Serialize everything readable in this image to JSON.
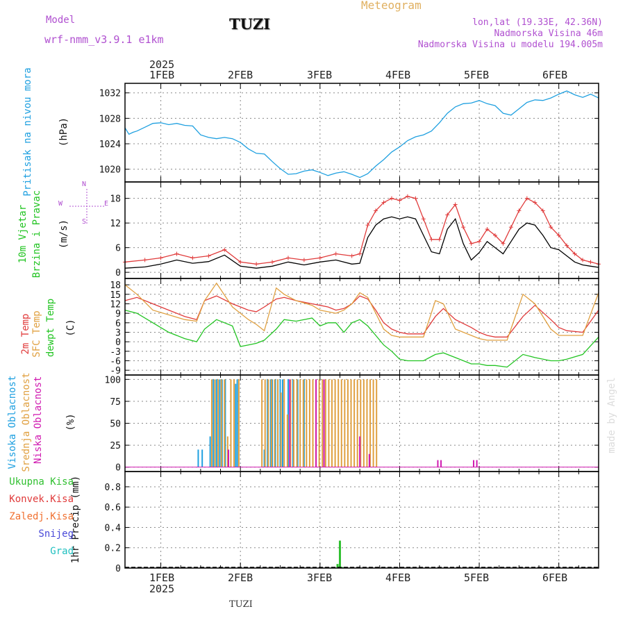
{
  "header": {
    "model_label": "Model",
    "model_name": "wrf-nmm_v3.9.1  e1km",
    "station": "TUZI",
    "chart_title": "Meteogram",
    "location": "lon,lat (19.33E, 42.36N)",
    "elevation": "Nadmorska Visina 46m",
    "model_elevation": "Nadmorska Visina u modelu 194.005m"
  },
  "footer": {
    "station": "TUZI",
    "watermark": "made by Angel"
  },
  "colors": {
    "pressure": "#1fa0e0",
    "temp2m": "#e03a3a",
    "sfc_temp": "#e0a040",
    "dewpoint": "#22c422",
    "high_cloud": "#1fa0e0",
    "mid_cloud": "#e0a040",
    "low_cloud": "#d01ab0",
    "total_precip": "#30c030",
    "conv_precip": "#e03a3a",
    "freezing_precip": "#f07030",
    "snow": "#4848d8",
    "hail": "#20c0c0",
    "wind_speed": "#000000",
    "wind_gust": "#e03a3a",
    "model_label": "#b050d0",
    "title": "#e0b060"
  },
  "time_axis": {
    "year": "2025",
    "days": [
      "1FEB",
      "2FEB",
      "3FEB",
      "4FEB",
      "5FEB",
      "6FEB"
    ],
    "x_range_days": [
      0.55,
      6.5
    ]
  },
  "chart_data": [
    {
      "type": "line",
      "name": "pressure",
      "ylabel_lines": [
        "Pritisak na nivou mora",
        "(hPa)"
      ],
      "yticks": [
        "1020",
        "1024",
        "1028",
        "1032"
      ],
      "ylim": [
        1018,
        1033.5
      ],
      "series": [
        {
          "name": "Pritisak na nivou mora",
          "color": "#1fa0e0",
          "x": [
            0.55,
            0.6,
            0.65,
            0.7,
            0.8,
            0.9,
            1.0,
            1.1,
            1.2,
            1.3,
            1.4,
            1.5,
            1.6,
            1.7,
            1.8,
            1.9,
            2.0,
            2.1,
            2.2,
            2.3,
            2.4,
            2.5,
            2.6,
            2.7,
            2.8,
            2.9,
            3.0,
            3.1,
            3.2,
            3.3,
            3.4,
            3.5,
            3.6,
            3.7,
            3.8,
            3.9,
            4.0,
            4.1,
            4.2,
            4.3,
            4.4,
            4.5,
            4.6,
            4.7,
            4.8,
            4.9,
            5.0,
            5.1,
            5.2,
            5.3,
            5.4,
            5.5,
            5.6,
            5.7,
            5.8,
            5.9,
            6.0,
            6.1,
            6.2,
            6.3,
            6.4,
            6.5
          ],
          "values": [
            1026.5,
            1025.5,
            1025.8,
            1026.0,
            1026.6,
            1027.2,
            1027.3,
            1027.0,
            1027.2,
            1026.9,
            1026.8,
            1025.4,
            1025.0,
            1024.8,
            1025.0,
            1024.8,
            1024.2,
            1023.2,
            1022.5,
            1022.4,
            1021.2,
            1020.1,
            1019.2,
            1019.3,
            1019.7,
            1019.9,
            1019.5,
            1019.0,
            1019.4,
            1019.6,
            1019.2,
            1018.7,
            1019.3,
            1020.5,
            1021.5,
            1022.7,
            1023.5,
            1024.5,
            1025.1,
            1025.4,
            1026.0,
            1027.3,
            1028.8,
            1029.8,
            1030.3,
            1030.4,
            1030.8,
            1030.3,
            1030.0,
            1028.8,
            1028.5,
            1029.5,
            1030.5,
            1030.9,
            1030.8,
            1031.2,
            1031.8,
            1032.3,
            1031.7,
            1031.3,
            1031.8,
            1031.2
          ]
        }
      ]
    },
    {
      "type": "line",
      "name": "wind",
      "ylabel_lines": [
        "10m Vjetar",
        "Brzina i Pravac",
        "(m/s)"
      ],
      "compass": {
        "n": "N",
        "s": "S",
        "w": "W",
        "e": "E"
      },
      "yticks": [
        "0",
        "6",
        "12",
        "18"
      ],
      "ylim": [
        -1.5,
        22
      ],
      "series": [
        {
          "name": "wind speed",
          "color": "#000000",
          "x": [
            0.55,
            0.8,
            1.0,
            1.2,
            1.4,
            1.6,
            1.8,
            2.0,
            2.2,
            2.4,
            2.6,
            2.8,
            3.0,
            3.2,
            3.4,
            3.5,
            3.6,
            3.7,
            3.8,
            3.9,
            4.0,
            4.1,
            4.2,
            4.3,
            4.4,
            4.5,
            4.6,
            4.7,
            4.8,
            4.9,
            5.0,
            5.1,
            5.2,
            5.3,
            5.4,
            5.5,
            5.6,
            5.7,
            5.8,
            5.9,
            6.0,
            6.1,
            6.2,
            6.3,
            6.4,
            6.5
          ],
          "values": [
            1.0,
            1.3,
            2.0,
            3.0,
            2.2,
            2.6,
            4.2,
            1.5,
            1.0,
            1.5,
            2.5,
            1.8,
            2.5,
            3.0,
            2.0,
            2.2,
            8.5,
            11.5,
            13.0,
            13.5,
            13.0,
            13.5,
            13.0,
            9.0,
            5.0,
            4.5,
            10.5,
            13.0,
            7.0,
            3.0,
            4.8,
            7.5,
            6.0,
            4.5,
            7.5,
            10.5,
            12.0,
            11.5,
            9.0,
            6.0,
            5.5,
            4.0,
            2.5,
            1.8,
            1.5,
            1.2
          ]
        },
        {
          "name": "wind gust",
          "color": "#e03a3a",
          "x": [
            0.55,
            0.8,
            1.0,
            1.2,
            1.4,
            1.6,
            1.8,
            2.0,
            2.2,
            2.4,
            2.6,
            2.8,
            3.0,
            3.2,
            3.4,
            3.5,
            3.6,
            3.7,
            3.8,
            3.9,
            4.0,
            4.1,
            4.2,
            4.3,
            4.4,
            4.5,
            4.6,
            4.7,
            4.8,
            4.9,
            5.0,
            5.1,
            5.2,
            5.3,
            5.4,
            5.5,
            5.6,
            5.7,
            5.8,
            5.9,
            6.0,
            6.1,
            6.2,
            6.3,
            6.4,
            6.5
          ],
          "values": [
            2.5,
            3.0,
            3.5,
            4.5,
            3.5,
            4.0,
            5.5,
            2.5,
            2.0,
            2.5,
            3.5,
            3.0,
            3.5,
            4.5,
            4.0,
            4.5,
            11.5,
            15.0,
            17.0,
            18.0,
            17.5,
            18.5,
            18.0,
            13.0,
            8.0,
            8.0,
            14.0,
            16.5,
            11.0,
            7.0,
            7.5,
            10.5,
            9.0,
            7.0,
            11.0,
            15.0,
            18.0,
            17.0,
            15.0,
            11.0,
            9.0,
            6.5,
            4.5,
            3.0,
            2.5,
            2.0
          ]
        }
      ]
    },
    {
      "type": "line",
      "name": "temperature",
      "ylabel_lines": [
        "2m Temp",
        "SFC Temp",
        "dewpt Temp",
        "(C)"
      ],
      "yticks": [
        "-9",
        "-6",
        "-3",
        "0",
        "3",
        "6",
        "9",
        "12",
        "15",
        "18"
      ],
      "ylim": [
        -10.5,
        20
      ],
      "series": [
        {
          "name": "2m Temp",
          "color": "#e03a3a",
          "x": [
            0.55,
            0.7,
            0.9,
            1.1,
            1.3,
            1.45,
            1.55,
            1.7,
            1.9,
            2.0,
            2.1,
            2.2,
            2.3,
            2.45,
            2.55,
            2.7,
            2.9,
            3.0,
            3.1,
            3.2,
            3.3,
            3.4,
            3.5,
            3.6,
            3.7,
            3.8,
            3.9,
            4.0,
            4.1,
            4.2,
            4.3,
            4.45,
            4.55,
            4.7,
            4.9,
            5.0,
            5.1,
            5.2,
            5.35,
            5.55,
            5.7,
            5.9,
            6.0,
            6.1,
            6.3,
            6.5
          ],
          "values": [
            13,
            14,
            12,
            10,
            8,
            7,
            13,
            14.5,
            12,
            11,
            10,
            9.5,
            11,
            13.5,
            14,
            13,
            12,
            11.5,
            11,
            10,
            10.5,
            12,
            14.5,
            13.5,
            10,
            6,
            4,
            3,
            2.5,
            2.5,
            2.5,
            8,
            10.5,
            7,
            4.5,
            3,
            2,
            1.5,
            1.5,
            8,
            11.5,
            7,
            4.5,
            3.5,
            3,
            10
          ]
        },
        {
          "name": "SFC Temp",
          "color": "#e0a040",
          "x": [
            0.55,
            0.7,
            0.9,
            1.1,
            1.3,
            1.45,
            1.55,
            1.7,
            1.9,
            2.0,
            2.1,
            2.2,
            2.3,
            2.45,
            2.55,
            2.7,
            2.9,
            3.0,
            3.1,
            3.2,
            3.3,
            3.4,
            3.5,
            3.6,
            3.7,
            3.8,
            3.9,
            4.0,
            4.1,
            4.2,
            4.3,
            4.45,
            4.55,
            4.7,
            4.9,
            5.0,
            5.1,
            5.2,
            5.35,
            5.55,
            5.7,
            5.9,
            6.0,
            6.1,
            6.3,
            6.5
          ],
          "values": [
            18,
            15,
            10,
            8.5,
            7,
            6.5,
            13,
            18.5,
            11,
            9,
            7,
            5.5,
            3.5,
            17,
            15,
            13,
            11.5,
            10,
            9.5,
            9,
            10,
            12,
            15.5,
            14,
            9,
            4,
            2,
            1.5,
            1.5,
            1.5,
            1.5,
            13,
            12,
            4,
            2,
            1,
            0.5,
            0.5,
            0.5,
            15,
            12,
            4,
            2,
            2,
            2,
            15.5
          ]
        },
        {
          "name": "dewpt Temp",
          "color": "#22c422",
          "x": [
            0.55,
            0.7,
            0.9,
            1.1,
            1.3,
            1.45,
            1.55,
            1.7,
            1.9,
            2.0,
            2.1,
            2.2,
            2.3,
            2.45,
            2.55,
            2.7,
            2.9,
            3.0,
            3.1,
            3.2,
            3.3,
            3.4,
            3.5,
            3.6,
            3.7,
            3.8,
            3.9,
            4.0,
            4.1,
            4.2,
            4.3,
            4.45,
            4.55,
            4.7,
            4.9,
            5.0,
            5.1,
            5.2,
            5.35,
            5.55,
            5.7,
            5.9,
            6.0,
            6.1,
            6.3,
            6.5
          ],
          "values": [
            10,
            9,
            6,
            3,
            1,
            0,
            4,
            7,
            5,
            -1.5,
            -1,
            -0.5,
            0.5,
            4,
            7,
            6.5,
            7.5,
            5,
            6,
            6,
            3,
            6,
            7,
            5,
            2,
            -1,
            -3,
            -5.5,
            -6,
            -6,
            -6,
            -4,
            -3.5,
            -5,
            -7,
            -7,
            -7.5,
            -7.5,
            -8,
            -4,
            -5,
            -6,
            -6,
            -5.5,
            -4,
            1.5
          ]
        }
      ]
    },
    {
      "type": "bar",
      "name": "cloud cover",
      "ylabel_lines": [
        "Visoka Oblacnost",
        "Srednja Oblacnost",
        "Niska Oblacnost",
        "(%)"
      ],
      "yticks": [
        "0",
        "25",
        "50",
        "75",
        "100"
      ],
      "ylim": [
        -5,
        105
      ],
      "series": [
        {
          "name": "Visoka Oblacnost",
          "color": "#1fa0e0",
          "x": [
            1.47,
            1.52,
            1.62,
            1.66,
            1.7,
            1.74,
            1.77,
            1.81,
            1.94,
            1.96,
            2.3,
            2.34,
            2.38,
            2.4,
            2.44,
            2.47,
            2.5,
            2.53,
            2.6,
            2.66,
            2.72,
            2.8
          ],
          "values": [
            20,
            20,
            35,
            100,
            100,
            100,
            100,
            100,
            95,
            100,
            20,
            100,
            100,
            100,
            100,
            100,
            100,
            100,
            100,
            100,
            100,
            100
          ]
        },
        {
          "name": "Srednja Oblacnost",
          "color": "#e0a040",
          "x": [
            1.64,
            1.68,
            1.72,
            1.76,
            1.8,
            1.84,
            1.88,
            1.92,
            1.98,
            2.27,
            2.31,
            2.35,
            2.39,
            2.43,
            2.47,
            2.51,
            2.55,
            2.59,
            2.63,
            2.67,
            2.71,
            2.75,
            2.79,
            2.83,
            2.87,
            2.91,
            2.95,
            2.99,
            3.03,
            3.07,
            3.11,
            3.15,
            3.19,
            3.23,
            3.27,
            3.31,
            3.35,
            3.39,
            3.43,
            3.47,
            3.51,
            3.55,
            3.59,
            3.63,
            3.67,
            3.71
          ],
          "values": [
            100,
            100,
            100,
            100,
            100,
            35,
            100,
            100,
            100,
            100,
            100,
            100,
            100,
            100,
            100,
            85,
            100,
            60,
            100,
            100,
            100,
            100,
            100,
            100,
            100,
            100,
            100,
            100,
            100,
            100,
            100,
            100,
            100,
            100,
            100,
            100,
            100,
            100,
            100,
            100,
            100,
            100,
            100,
            100,
            100,
            100
          ]
        },
        {
          "name": "Niska Oblacnost",
          "color": "#d01ab0",
          "x": [
            1.85,
            2.62,
            2.95,
            3.05,
            3.5,
            3.62,
            4.48,
            4.52,
            4.93,
            4.97
          ],
          "values": [
            20,
            100,
            100,
            100,
            35,
            15,
            8,
            8,
            8,
            8
          ]
        }
      ]
    },
    {
      "type": "bar",
      "name": "precipitation",
      "ylabel_lines": [
        "1hr Precip (mm)"
      ],
      "legend": [
        "Ukupna Kisa",
        "Konvek.Kisa",
        "Zaledj.Kisa",
        "Snijeg",
        "Grad"
      ],
      "yticks": [
        "0",
        "0.2",
        "0.4",
        "0.6",
        "0.8"
      ],
      "ylim": [
        0,
        0.95
      ],
      "series": [
        {
          "name": "Ukupna Kisa",
          "color": "#30c030",
          "x": [
            3.22,
            3.25,
            3.28
          ],
          "values": [
            0.04,
            0.27,
            0.01
          ]
        }
      ]
    }
  ]
}
